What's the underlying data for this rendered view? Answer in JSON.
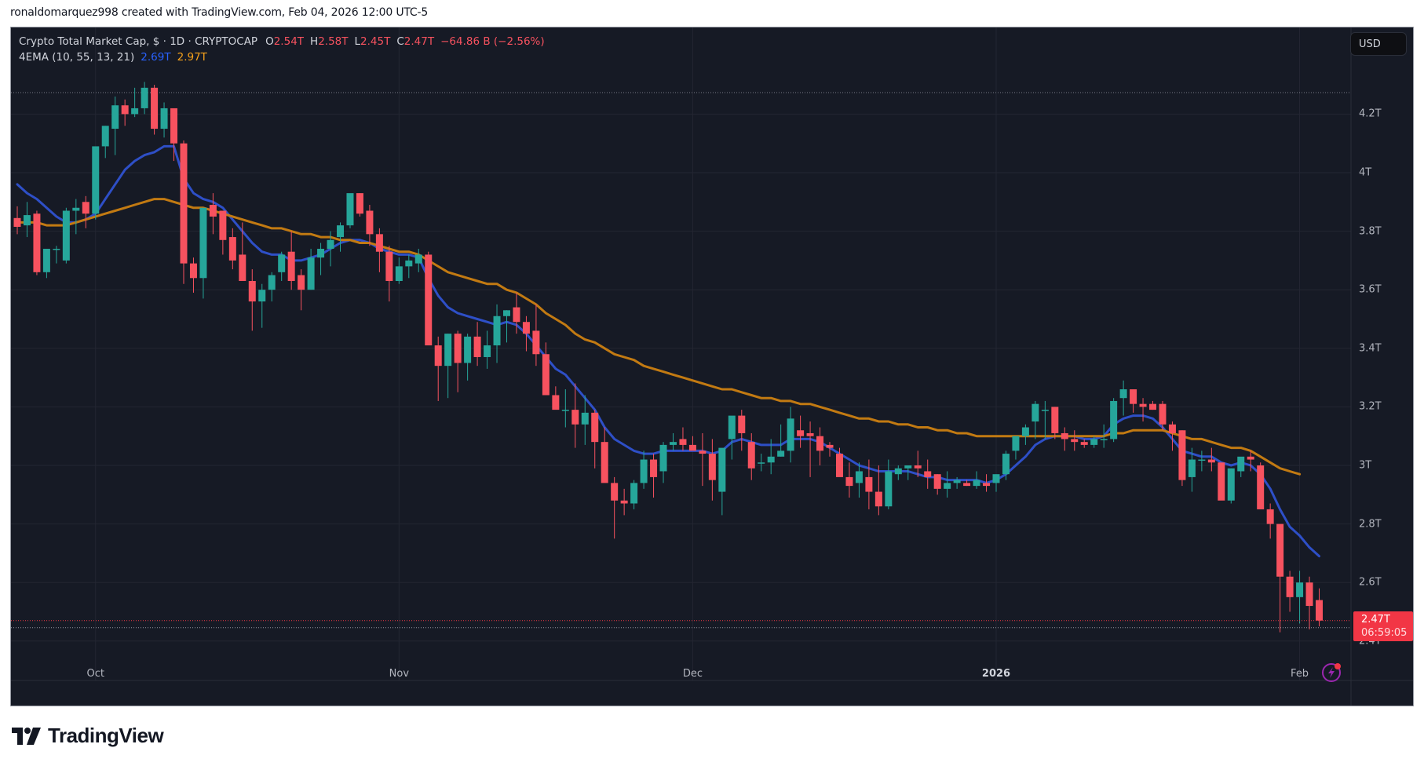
{
  "credit": "ronaldomarquez998 created with TradingView.com, Feb 04, 2026 12:00 UTC-5",
  "legend": {
    "symbol": "Crypto Total Market Cap, $ · 1D · CRYPTOCAP",
    "open_label": "O",
    "open": "2.54T",
    "high_label": "H",
    "high": "2.58T",
    "low_label": "L",
    "low": "2.45T",
    "close_label": "C",
    "close": "2.47T",
    "change": "−64.86 B (−2.56%)",
    "indicator": "4EMA (10, 55, 13, 21)",
    "ema_fast": "2.69T",
    "ema_slow": "2.97T"
  },
  "currency_button": "USD",
  "last_price": {
    "value": "2.47T",
    "countdown": "06:59:05"
  },
  "colors": {
    "background": "#161a25",
    "up": "#26a69a",
    "down": "#f7525f",
    "ema_fast": "#2e4fc7",
    "ema_slow": "#c27a12",
    "grid": "#232632",
    "axis_text": "#b2b5be",
    "last_price_label": "#f23645",
    "flash_icon": "#9c27b0"
  },
  "brand": "TradingView",
  "chart_data": {
    "type": "candlestick",
    "title": "Crypto Total Market Cap, $ · 1D · CRYPTOCAP",
    "unit": "T (USD trillions)",
    "x_start": "2025-09-23",
    "x_end": "2026-02-04",
    "xlabel": "",
    "ylabel": "",
    "time_ticks": [
      {
        "label": "Oct",
        "index": 8
      },
      {
        "label": "Nov",
        "index": 39
      },
      {
        "label": "Dec",
        "index": 69
      },
      {
        "label": "2026",
        "index": 100,
        "bold": true
      },
      {
        "label": "Feb",
        "index": 131
      }
    ],
    "price_ticks": [
      "4.2T",
      "4T",
      "3.8T",
      "3.6T",
      "3.4T",
      "3.2T",
      "3T",
      "2.8T",
      "2.6T",
      "2.4T"
    ],
    "ylim": [
      2.27,
      4.42
    ],
    "grid": true,
    "legend_position": "top-left",
    "ohlc": [
      [
        3.845,
        3.885,
        3.79,
        3.815
      ],
      [
        3.82,
        3.9,
        3.78,
        3.855
      ],
      [
        3.86,
        3.87,
        3.65,
        3.66
      ],
      [
        3.66,
        3.72,
        3.64,
        3.74
      ],
      [
        3.74,
        3.75,
        3.69,
        3.74
      ],
      [
        3.7,
        3.88,
        3.69,
        3.87
      ],
      [
        3.87,
        3.91,
        3.79,
        3.88
      ],
      [
        3.9,
        3.92,
        3.81,
        3.86
      ],
      [
        3.86,
        4.05,
        3.84,
        4.09
      ],
      [
        4.09,
        4.16,
        4.05,
        4.16
      ],
      [
        4.15,
        4.26,
        4.06,
        4.23
      ],
      [
        4.23,
        4.25,
        4.16,
        4.2
      ],
      [
        4.2,
        4.29,
        4.19,
        4.22
      ],
      [
        4.22,
        4.31,
        4.2,
        4.29
      ],
      [
        4.29,
        4.3,
        4.13,
        4.15
      ],
      [
        4.15,
        4.24,
        4.12,
        4.22
      ],
      [
        4.22,
        4.21,
        4.04,
        4.1
      ],
      [
        4.1,
        4.11,
        3.62,
        3.69
      ],
      [
        3.69,
        3.71,
        3.59,
        3.64
      ],
      [
        3.64,
        3.87,
        3.57,
        3.88
      ],
      [
        3.89,
        3.93,
        3.79,
        3.85
      ],
      [
        3.87,
        3.87,
        3.72,
        3.77
      ],
      [
        3.78,
        3.81,
        3.67,
        3.7
      ],
      [
        3.72,
        3.83,
        3.68,
        3.63
      ],
      [
        3.63,
        3.67,
        3.46,
        3.56
      ],
      [
        3.56,
        3.62,
        3.47,
        3.6
      ],
      [
        3.6,
        3.66,
        3.56,
        3.65
      ],
      [
        3.66,
        3.73,
        3.63,
        3.72
      ],
      [
        3.73,
        3.8,
        3.6,
        3.63
      ],
      [
        3.65,
        3.67,
        3.53,
        3.6
      ],
      [
        3.6,
        3.74,
        3.6,
        3.71
      ],
      [
        3.71,
        3.76,
        3.65,
        3.74
      ],
      [
        3.74,
        3.8,
        3.68,
        3.77
      ],
      [
        3.78,
        3.83,
        3.73,
        3.82
      ],
      [
        3.82,
        3.91,
        3.81,
        3.93
      ],
      [
        3.93,
        3.93,
        3.85,
        3.86
      ],
      [
        3.87,
        3.89,
        3.75,
        3.79
      ],
      [
        3.79,
        3.81,
        3.66,
        3.73
      ],
      [
        3.73,
        3.75,
        3.56,
        3.63
      ],
      [
        3.63,
        3.71,
        3.62,
        3.68
      ],
      [
        3.68,
        3.72,
        3.64,
        3.7
      ],
      [
        3.69,
        3.74,
        3.66,
        3.72
      ],
      [
        3.72,
        3.73,
        3.53,
        3.41
      ],
      [
        3.41,
        3.44,
        3.22,
        3.34
      ],
      [
        3.34,
        3.45,
        3.23,
        3.45
      ],
      [
        3.45,
        3.46,
        3.25,
        3.35
      ],
      [
        3.35,
        3.45,
        3.29,
        3.44
      ],
      [
        3.44,
        3.49,
        3.34,
        3.37
      ],
      [
        3.37,
        3.46,
        3.33,
        3.41
      ],
      [
        3.41,
        3.55,
        3.35,
        3.51
      ],
      [
        3.51,
        3.53,
        3.42,
        3.53
      ],
      [
        3.54,
        3.59,
        3.45,
        3.49
      ],
      [
        3.49,
        3.51,
        3.39,
        3.45
      ],
      [
        3.46,
        3.55,
        3.34,
        3.38
      ],
      [
        3.38,
        3.42,
        3.24,
        3.24
      ],
      [
        3.24,
        3.27,
        3.2,
        3.19
      ],
      [
        3.19,
        3.26,
        3.13,
        3.19
      ],
      [
        3.19,
        3.28,
        3.06,
        3.14
      ],
      [
        3.14,
        3.24,
        3.07,
        3.18
      ],
      [
        3.18,
        3.19,
        2.99,
        3.08
      ],
      [
        3.08,
        3.13,
        2.95,
        2.94
      ],
      [
        2.94,
        2.96,
        2.75,
        2.88
      ],
      [
        2.88,
        2.92,
        2.83,
        2.87
      ],
      [
        2.87,
        2.95,
        2.85,
        2.94
      ],
      [
        2.94,
        3.05,
        2.92,
        3.02
      ],
      [
        3.02,
        3.04,
        2.89,
        2.96
      ],
      [
        2.98,
        3.08,
        2.94,
        3.07
      ],
      [
        3.07,
        3.11,
        3.05,
        3.08
      ],
      [
        3.09,
        3.13,
        3.05,
        3.07
      ],
      [
        3.07,
        3.1,
        3.06,
        3.05
      ],
      [
        3.05,
        3.11,
        2.93,
        3.04
      ],
      [
        3.04,
        3.09,
        2.88,
        2.95
      ],
      [
        2.91,
        3.02,
        2.83,
        3.06
      ],
      [
        3.09,
        3.16,
        3.02,
        3.17
      ],
      [
        3.17,
        3.19,
        3.05,
        3.11
      ],
      [
        3.08,
        3.11,
        2.95,
        2.99
      ],
      [
        3.01,
        3.04,
        2.98,
        3.01
      ],
      [
        3.01,
        3.09,
        2.97,
        3.03
      ],
      [
        3.03,
        3.14,
        3.03,
        3.05
      ],
      [
        3.05,
        3.2,
        3.01,
        3.16
      ],
      [
        3.12,
        3.17,
        3.06,
        3.1
      ],
      [
        3.11,
        3.15,
        2.96,
        3.1
      ],
      [
        3.1,
        3.13,
        3.0,
        3.05
      ],
      [
        3.07,
        3.08,
        3.03,
        3.06
      ],
      [
        3.04,
        3.06,
        2.97,
        2.96
      ],
      [
        2.96,
        3.01,
        2.89,
        2.93
      ],
      [
        2.94,
        3.01,
        2.89,
        2.98
      ],
      [
        2.96,
        3.02,
        2.85,
        2.91
      ],
      [
        2.91,
        3.0,
        2.83,
        2.86
      ],
      [
        2.86,
        3.02,
        2.85,
        2.98
      ],
      [
        2.97,
        3.0,
        2.95,
        2.99
      ],
      [
        2.99,
        3.0,
        2.95,
        3.0
      ],
      [
        3.0,
        3.05,
        2.96,
        2.99
      ],
      [
        2.98,
        3.02,
        2.92,
        2.96
      ],
      [
        2.97,
        2.97,
        2.9,
        2.92
      ],
      [
        2.92,
        2.98,
        2.89,
        2.94
      ],
      [
        2.94,
        2.96,
        2.92,
        2.95
      ],
      [
        2.94,
        2.95,
        2.93,
        2.93
      ],
      [
        2.93,
        2.98,
        2.92,
        2.95
      ],
      [
        2.94,
        2.97,
        2.91,
        2.93
      ],
      [
        2.94,
        2.97,
        2.91,
        2.97
      ],
      [
        2.97,
        3.05,
        2.95,
        3.04
      ],
      [
        3.05,
        3.08,
        3.02,
        3.1
      ],
      [
        3.1,
        3.14,
        3.07,
        3.13
      ],
      [
        3.15,
        3.22,
        3.09,
        3.21
      ],
      [
        3.19,
        3.22,
        3.09,
        3.19
      ],
      [
        3.2,
        3.2,
        3.09,
        3.11
      ],
      [
        3.11,
        3.13,
        3.05,
        3.09
      ],
      [
        3.09,
        3.12,
        3.05,
        3.08
      ],
      [
        3.08,
        3.09,
        3.06,
        3.07
      ],
      [
        3.07,
        3.1,
        3.06,
        3.09
      ],
      [
        3.09,
        3.14,
        3.06,
        3.09
      ],
      [
        3.09,
        3.23,
        3.08,
        3.22
      ],
      [
        3.23,
        3.29,
        3.17,
        3.26
      ],
      [
        3.26,
        3.26,
        3.18,
        3.21
      ],
      [
        3.21,
        3.23,
        3.15,
        3.2
      ],
      [
        3.21,
        3.22,
        3.19,
        3.19
      ],
      [
        3.21,
        3.22,
        3.12,
        3.14
      ],
      [
        3.14,
        3.15,
        3.05,
        3.11
      ],
      [
        3.12,
        3.12,
        2.93,
        2.95
      ],
      [
        2.96,
        3.06,
        2.91,
        3.02
      ],
      [
        3.02,
        3.05,
        2.98,
        3.02
      ],
      [
        3.02,
        3.06,
        2.98,
        3.01
      ],
      [
        3.01,
        3.0,
        2.91,
        2.88
      ],
      [
        2.88,
        2.99,
        2.87,
        2.99
      ],
      [
        2.98,
        3.02,
        2.96,
        3.03
      ],
      [
        3.03,
        3.05,
        2.98,
        3.02
      ],
      [
        3.0,
        3.01,
        2.85,
        2.85
      ],
      [
        2.85,
        2.87,
        2.75,
        2.8
      ],
      [
        2.8,
        2.79,
        2.43,
        2.62
      ],
      [
        2.62,
        2.64,
        2.5,
        2.55
      ],
      [
        2.55,
        2.64,
        2.46,
        2.6
      ],
      [
        2.6,
        2.62,
        2.44,
        2.52
      ],
      [
        2.54,
        2.58,
        2.45,
        2.47
      ]
    ],
    "series": [
      {
        "name": "EMA fast",
        "color": "#2e4fc7",
        "values": [
          3.96,
          3.93,
          3.91,
          3.88,
          3.85,
          3.83,
          3.83,
          3.84,
          3.86,
          3.91,
          3.96,
          4.01,
          4.04,
          4.06,
          4.07,
          4.09,
          4.09,
          3.98,
          3.93,
          3.91,
          3.9,
          3.88,
          3.84,
          3.8,
          3.76,
          3.73,
          3.72,
          3.72,
          3.7,
          3.7,
          3.71,
          3.72,
          3.74,
          3.76,
          3.77,
          3.77,
          3.76,
          3.74,
          3.73,
          3.72,
          3.72,
          3.71,
          3.64,
          3.58,
          3.54,
          3.52,
          3.51,
          3.5,
          3.49,
          3.48,
          3.49,
          3.48,
          3.45,
          3.41,
          3.37,
          3.33,
          3.31,
          3.27,
          3.23,
          3.19,
          3.13,
          3.09,
          3.07,
          3.05,
          3.04,
          3.04,
          3.05,
          3.05,
          3.05,
          3.05,
          3.05,
          3.04,
          3.05,
          3.08,
          3.09,
          3.08,
          3.07,
          3.07,
          3.07,
          3.09,
          3.09,
          3.09,
          3.08,
          3.06,
          3.04,
          3.02,
          3.0,
          2.99,
          2.98,
          2.98,
          2.98,
          2.98,
          2.97,
          2.96,
          2.96,
          2.95,
          2.95,
          2.95,
          2.95,
          2.94,
          2.95,
          2.97,
          3.0,
          3.03,
          3.07,
          3.09,
          3.1,
          3.1,
          3.1,
          3.09,
          3.09,
          3.1,
          3.14,
          3.16,
          3.17,
          3.17,
          3.16,
          3.13,
          3.09,
          3.05,
          3.04,
          3.03,
          3.03,
          3.01,
          3.0,
          3.01,
          3.0,
          2.97,
          2.92,
          2.85,
          2.79,
          2.76,
          2.72,
          2.69
        ]
      },
      {
        "name": "EMA slow",
        "color": "#c27a12",
        "values": [
          3.83,
          3.83,
          3.83,
          3.82,
          3.82,
          3.82,
          3.83,
          3.84,
          3.85,
          3.86,
          3.87,
          3.88,
          3.89,
          3.9,
          3.91,
          3.91,
          3.9,
          3.89,
          3.88,
          3.88,
          3.87,
          3.86,
          3.85,
          3.84,
          3.83,
          3.82,
          3.81,
          3.81,
          3.8,
          3.79,
          3.79,
          3.78,
          3.78,
          3.77,
          3.77,
          3.76,
          3.76,
          3.75,
          3.74,
          3.73,
          3.73,
          3.72,
          3.7,
          3.68,
          3.66,
          3.65,
          3.64,
          3.63,
          3.62,
          3.62,
          3.6,
          3.59,
          3.57,
          3.55,
          3.52,
          3.5,
          3.48,
          3.45,
          3.43,
          3.42,
          3.4,
          3.38,
          3.37,
          3.36,
          3.34,
          3.33,
          3.32,
          3.31,
          3.3,
          3.29,
          3.28,
          3.27,
          3.26,
          3.26,
          3.25,
          3.24,
          3.23,
          3.23,
          3.22,
          3.22,
          3.21,
          3.21,
          3.2,
          3.19,
          3.18,
          3.17,
          3.16,
          3.16,
          3.15,
          3.15,
          3.14,
          3.14,
          3.13,
          3.13,
          3.12,
          3.12,
          3.11,
          3.11,
          3.1,
          3.1,
          3.1,
          3.1,
          3.1,
          3.1,
          3.1,
          3.1,
          3.1,
          3.1,
          3.1,
          3.1,
          3.1,
          3.1,
          3.11,
          3.11,
          3.12,
          3.12,
          3.12,
          3.12,
          3.11,
          3.1,
          3.09,
          3.09,
          3.08,
          3.07,
          3.06,
          3.06,
          3.05,
          3.03,
          3.01,
          2.99,
          2.98,
          2.97
        ]
      }
    ]
  }
}
